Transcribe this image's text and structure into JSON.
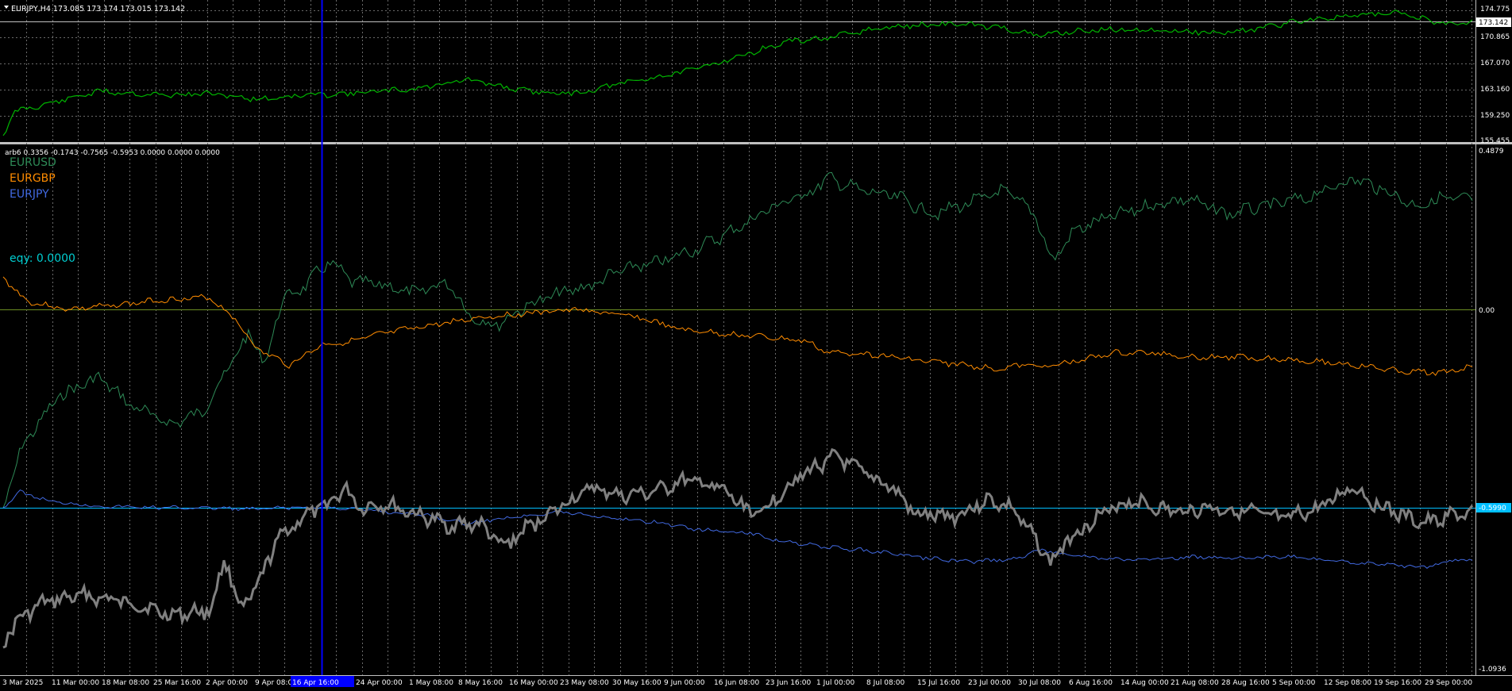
{
  "main": {
    "title": "EURJPY,H4  173.085 173.174 173.015 173.142",
    "price_labels": [
      "174.775",
      "173.142",
      "170.865",
      "167.070",
      "163.160",
      "159.250",
      "155.455"
    ],
    "current_price": "173.142",
    "line_color": "#00b400"
  },
  "indicator": {
    "title": "arb6 0.3356 -0.1743 -0.7565 -0.5953 0.0000 0.0000 0.0000",
    "legend": [
      {
        "label": "EURUSD",
        "color": "#2e8b57"
      },
      {
        "label": "EURGBP",
        "color": "#ff8c00"
      },
      {
        "label": "EURJPY",
        "color": "#4169e1"
      }
    ],
    "eqy": "eqy: 0.0000",
    "eqy_color": "#00ced1",
    "scale_labels": [
      "0.4879",
      "0.00",
      "-1.0936"
    ],
    "current_value": "-0.5990",
    "sum_color": "#808080",
    "zero_line_color": "#6b8e23",
    "level_line_color": "#00bfff"
  },
  "time_axis": {
    "labels": [
      "3 Mar 2025",
      "11 Mar 00:00",
      "18 Mar 08:00",
      "25 Mar 16:00",
      "2 Apr 00:00",
      "9 Apr 08:0",
      "24 Apr 00:00",
      "1 May 08:00",
      "8 May 16:00",
      "16 May 00:00",
      "23 May 08:00",
      "30 May 16:00",
      "9 Jun 00:00",
      "16 Jun 08:00",
      "23 Jun 16:00",
      "1 Jul 00:00",
      "8 Jul 08:00",
      "15 Jul 16:00",
      "23 Jul 00:00",
      "30 Jul 08:00",
      "6 Aug 16:00",
      "14 Aug 00:00",
      "21 Aug 08:00",
      "28 Aug 16:00",
      "5 Sep 00:00",
      "12 Sep 08:00",
      "19 Sep 16:00",
      "29 Sep 00:00"
    ],
    "crosshair_label": "16 Apr 16:00",
    "crosshair_color": "#0000ff"
  }
}
